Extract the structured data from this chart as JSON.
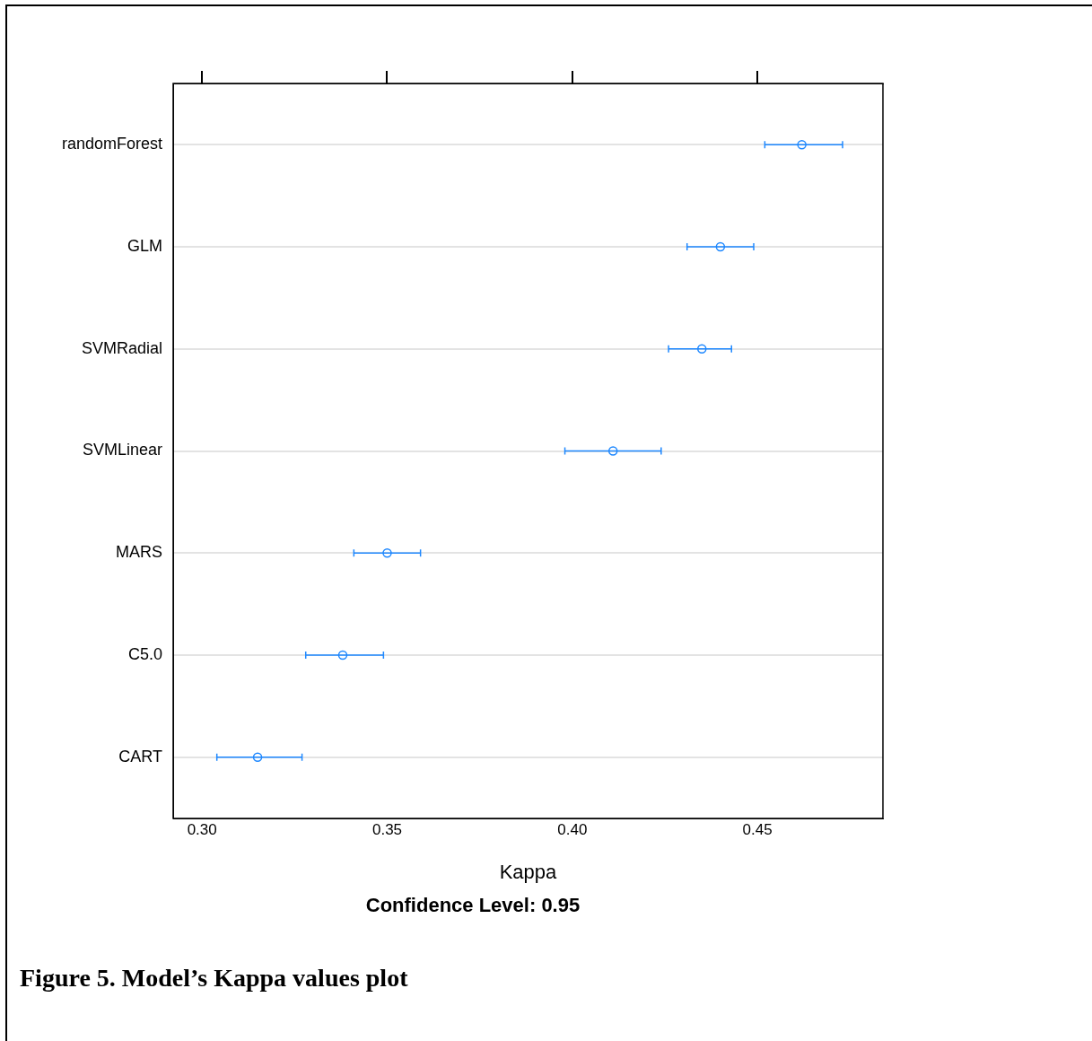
{
  "chart_data": {
    "type": "scatter",
    "orientation": "horizontal",
    "xlabel": "Kappa",
    "categories": [
      "randomForest",
      "GLM",
      "SVMRadial",
      "SVMLinear",
      "MARS",
      "C5.0",
      "CART"
    ],
    "values": [
      0.462,
      0.44,
      0.435,
      0.411,
      0.35,
      0.338,
      0.315
    ],
    "errors": [
      [
        0.452,
        0.473
      ],
      [
        0.431,
        0.449
      ],
      [
        0.426,
        0.443
      ],
      [
        0.398,
        0.424
      ],
      [
        0.341,
        0.359
      ],
      [
        0.328,
        0.349
      ],
      [
        0.304,
        0.327
      ]
    ],
    "color": "#1e88ff",
    "marker": "circle",
    "grid": "y",
    "legend": false,
    "xlim": [
      0.2922,
      0.4839
    ],
    "xticks": [
      {
        "value": 0.3,
        "label": "0.30"
      },
      {
        "value": 0.35,
        "label": "0.35"
      },
      {
        "value": 0.4,
        "label": "0.40"
      },
      {
        "value": 0.45,
        "label": "0.45"
      }
    ],
    "annotations": [
      "Confidence Level: 0.95",
      "Figure 5. Model’s  Kappa values plot"
    ]
  }
}
